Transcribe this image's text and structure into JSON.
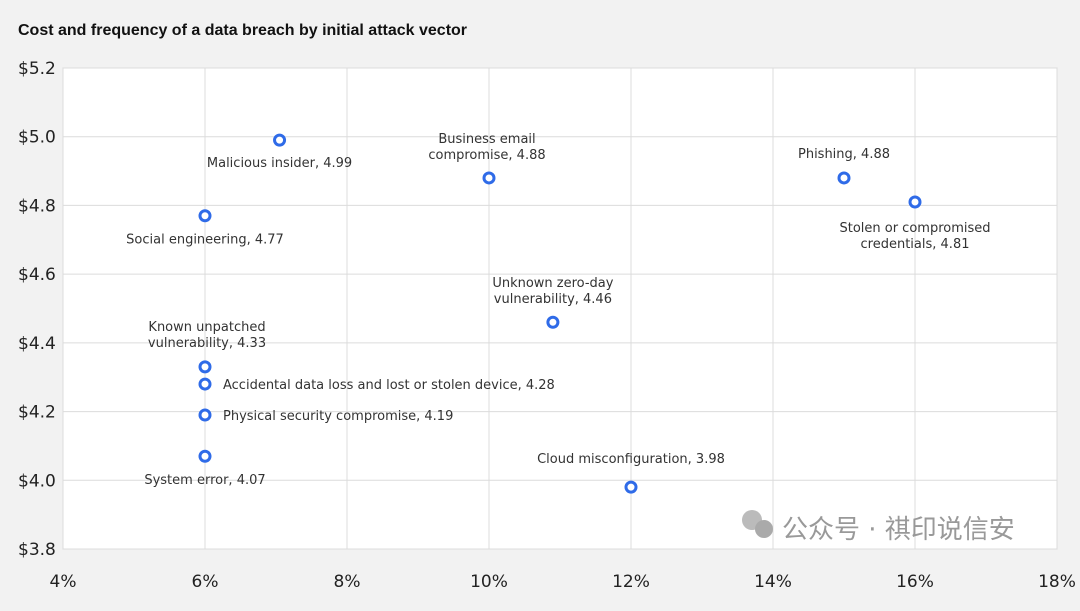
{
  "chart_data": {
    "type": "scatter",
    "title": "Cost and frequency of a data breach by initial attack vector",
    "xlabel": "",
    "ylabel": "",
    "xlim": [
      4,
      18
    ],
    "ylim": [
      3.8,
      5.2
    ],
    "x_ticks": [
      "4%",
      "6%",
      "8%",
      "10%",
      "12%",
      "14%",
      "16%",
      "18%"
    ],
    "y_ticks": [
      "$3.8",
      "$4.0",
      "$4.2",
      "$4.4",
      "$4.6",
      "$4.8",
      "$5.0",
      "$5.2"
    ],
    "x_tick_values": [
      4,
      6,
      8,
      10,
      12,
      14,
      16,
      18
    ],
    "y_tick_values": [
      3.8,
      4.0,
      4.2,
      4.4,
      4.6,
      4.8,
      5.0,
      5.2
    ],
    "grid": true,
    "marker_color": "#2f6be8",
    "points": [
      {
        "x": 7.05,
        "y": 4.99,
        "label_lines": [
          "Malicious insider, 4.99"
        ]
      },
      {
        "x": 10.0,
        "y": 4.88,
        "label_lines": [
          "Business email",
          "compromise, 4.88"
        ]
      },
      {
        "x": 15.0,
        "y": 4.88,
        "label_lines": [
          "Phishing, 4.88"
        ]
      },
      {
        "x": 16.0,
        "y": 4.81,
        "label_lines": [
          "Stolen or compromised",
          "credentials, 4.81"
        ]
      },
      {
        "x": 6.0,
        "y": 4.77,
        "label_lines": [
          "Social engineering, 4.77"
        ]
      },
      {
        "x": 10.9,
        "y": 4.46,
        "label_lines": [
          "Unknown zero-day",
          "vulnerability, 4.46"
        ]
      },
      {
        "x": 6.0,
        "y": 4.33,
        "label_lines": [
          "Known unpatched",
          "vulnerability, 4.33"
        ]
      },
      {
        "x": 6.0,
        "y": 4.28,
        "label_lines": [
          "Accidental data loss and lost or stolen device, 4.28"
        ]
      },
      {
        "x": 6.0,
        "y": 4.19,
        "label_lines": [
          "Physical security compromise, 4.19"
        ]
      },
      {
        "x": 6.0,
        "y": 4.07,
        "label_lines": [
          "System error, 4.07"
        ]
      },
      {
        "x": 12.0,
        "y": 3.98,
        "label_lines": [
          "Cloud misconfiguration, 3.98"
        ]
      }
    ]
  },
  "watermark": "公众号 · 祺印说信安"
}
